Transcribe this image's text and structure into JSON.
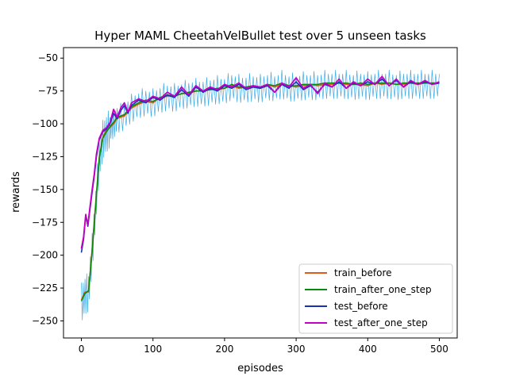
{
  "chart_data": {
    "type": "line",
    "title": "Hyper MAML CheetahVelBullet test over 5 unseen tasks",
    "xlabel": "episodes",
    "ylabel": "rewards",
    "xlim": [
      -25,
      525
    ],
    "ylim": [
      -263,
      -42
    ],
    "xticks": [
      0,
      100,
      200,
      300,
      400,
      500
    ],
    "yticks": [
      -250,
      -225,
      -200,
      -175,
      -150,
      -125,
      -100,
      -75,
      -50
    ],
    "grid": false,
    "legend_position": "lower-right",
    "band_color": "#1f9be0",
    "series": [
      {
        "name": "train_before",
        "color": "#e05a1b",
        "x": [
          0,
          5,
          10,
          15,
          20,
          25,
          30,
          35,
          40,
          45,
          50,
          60,
          70,
          80,
          90,
          100,
          110,
          120,
          130,
          140,
          150,
          160,
          170,
          180,
          190,
          200,
          210,
          220,
          230,
          240,
          250,
          260,
          270,
          280,
          290,
          300,
          310,
          320,
          330,
          340,
          350,
          360,
          370,
          380,
          390,
          400,
          410,
          420,
          430,
          440,
          450,
          460,
          470,
          480,
          490,
          500
        ],
        "y": [
          -234,
          -228,
          -228,
          -195,
          -160,
          -125,
          -110,
          -105,
          -103,
          -100,
          -96,
          -94,
          -88,
          -85,
          -83,
          -84,
          -80,
          -79,
          -79,
          -77,
          -77,
          -75,
          -75,
          -74,
          -74,
          -73,
          -71,
          -73,
          -72,
          -72,
          -73,
          -70,
          -72,
          -70,
          -71,
          -72,
          -71,
          -70,
          -71,
          -70,
          -70,
          -69,
          -70,
          -70,
          -70,
          -71,
          -69,
          -70,
          -69,
          -70,
          -70,
          -69,
          -70,
          -69,
          -69,
          -69
        ]
      },
      {
        "name": "train_after_one_step",
        "color": "#0a8a0a",
        "x": [
          0,
          5,
          10,
          15,
          20,
          25,
          30,
          35,
          40,
          45,
          50,
          60,
          70,
          80,
          90,
          100,
          110,
          120,
          130,
          140,
          150,
          160,
          170,
          180,
          190,
          200,
          210,
          220,
          230,
          240,
          250,
          260,
          270,
          280,
          290,
          300,
          310,
          320,
          330,
          340,
          350,
          360,
          370,
          380,
          390,
          400,
          410,
          420,
          430,
          440,
          450,
          460,
          470,
          480,
          490,
          500
        ],
        "y": [
          -235,
          -229,
          -227,
          -197,
          -162,
          -126,
          -111,
          -106,
          -102,
          -99,
          -95,
          -93,
          -87,
          -84,
          -82,
          -83,
          -80,
          -78,
          -79,
          -77,
          -76,
          -75,
          -75,
          -74,
          -73,
          -73,
          -70,
          -72,
          -72,
          -71,
          -72,
          -70,
          -71,
          -69,
          -71,
          -71,
          -70,
          -70,
          -70,
          -69,
          -69,
          -69,
          -69,
          -70,
          -69,
          -70,
          -69,
          -69,
          -69,
          -70,
          -69,
          -69,
          -69,
          -69,
          -69,
          -69
        ]
      },
      {
        "name": "test_before",
        "color": "#1c2fb5",
        "x": [
          0,
          3,
          6,
          9,
          12,
          15,
          18,
          21,
          25,
          30,
          35,
          40,
          45,
          50,
          55,
          60,
          65,
          70,
          80,
          90,
          100,
          110,
          120,
          130,
          140,
          150,
          160,
          170,
          180,
          190,
          200,
          210,
          220,
          230,
          240,
          250,
          260,
          270,
          280,
          290,
          300,
          310,
          320,
          330,
          340,
          350,
          360,
          370,
          380,
          390,
          400,
          410,
          420,
          430,
          440,
          450,
          460,
          470,
          480,
          490,
          500
        ],
        "y": [
          -198,
          -188,
          -170,
          -178,
          -165,
          -152,
          -140,
          -125,
          -112,
          -106,
          -104,
          -100,
          -92,
          -96,
          -90,
          -86,
          -92,
          -86,
          -82,
          -84,
          -80,
          -82,
          -78,
          -80,
          -74,
          -79,
          -72,
          -76,
          -73,
          -75,
          -71,
          -73,
          -70,
          -74,
          -72,
          -73,
          -71,
          -76,
          -70,
          -73,
          -68,
          -74,
          -71,
          -76,
          -70,
          -72,
          -68,
          -73,
          -69,
          -71,
          -68,
          -70,
          -66,
          -71,
          -67,
          -72,
          -68,
          -70,
          -68,
          -70,
          -69
        ]
      },
      {
        "name": "test_after_one_step",
        "color": "#c400c4",
        "x": [
          0,
          3,
          6,
          9,
          12,
          15,
          18,
          21,
          25,
          30,
          35,
          40,
          45,
          50,
          55,
          60,
          65,
          70,
          80,
          90,
          100,
          110,
          120,
          130,
          140,
          150,
          160,
          170,
          180,
          190,
          200,
          210,
          220,
          230,
          240,
          250,
          260,
          270,
          280,
          290,
          300,
          310,
          320,
          330,
          340,
          350,
          360,
          370,
          380,
          390,
          400,
          410,
          420,
          430,
          440,
          450,
          460,
          470,
          480,
          490,
          500
        ],
        "y": [
          -195,
          -186,
          -169,
          -177,
          -163,
          -150,
          -138,
          -123,
          -111,
          -105,
          -103,
          -99,
          -89,
          -95,
          -88,
          -84,
          -91,
          -84,
          -81,
          -83,
          -79,
          -81,
          -76,
          -79,
          -72,
          -78,
          -71,
          -75,
          -72,
          -74,
          -70,
          -72,
          -69,
          -73,
          -71,
          -72,
          -70,
          -76,
          -69,
          -72,
          -65,
          -73,
          -70,
          -77,
          -69,
          -72,
          -66,
          -73,
          -68,
          -71,
          -66,
          -70,
          -64,
          -71,
          -66,
          -72,
          -67,
          -70,
          -67,
          -70,
          -68
        ]
      }
    ]
  }
}
